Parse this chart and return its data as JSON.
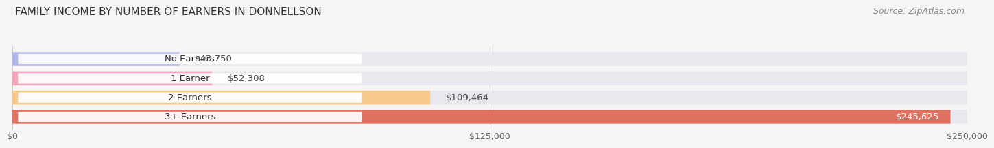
{
  "title": "FAMILY INCOME BY NUMBER OF EARNERS IN DONNELLSON",
  "source": "Source: ZipAtlas.com",
  "categories": [
    "No Earners",
    "1 Earner",
    "2 Earners",
    "3+ Earners"
  ],
  "values": [
    43750,
    52308,
    109464,
    245625
  ],
  "bar_colors": [
    "#b0b8e8",
    "#f5a8bc",
    "#f8c98c",
    "#e07060"
  ],
  "bar_bg_color": "#e8e8ee",
  "label_colors": [
    "#333333",
    "#333333",
    "#333333",
    "#ffffff"
  ],
  "xlim": [
    0,
    250000
  ],
  "xticks": [
    0,
    125000,
    250000
  ],
  "xtick_labels": [
    "$0",
    "$125,000",
    "$250,000"
  ],
  "background_color": "#f5f5f5",
  "title_fontsize": 11,
  "source_fontsize": 9,
  "bar_label_fontsize": 9.5,
  "category_fontsize": 9.5,
  "tick_fontsize": 9
}
